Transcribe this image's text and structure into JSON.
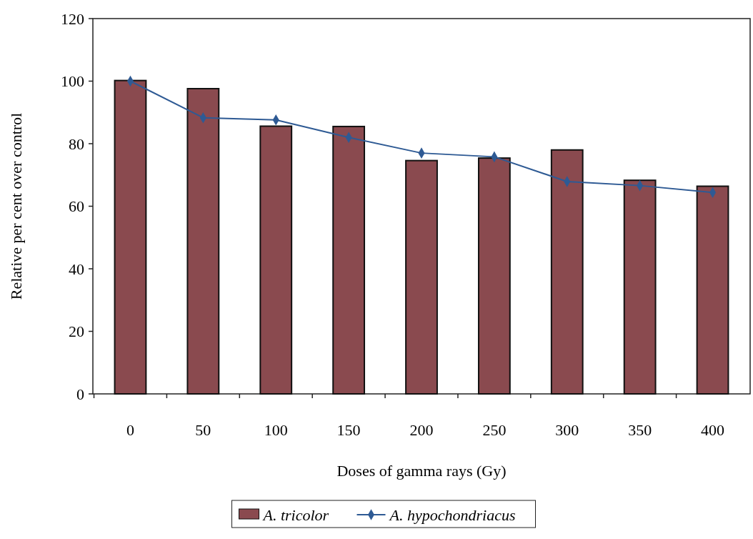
{
  "chart_data": {
    "type": "bar",
    "xlabel": "Doses of gamma rays (Gy)",
    "ylabel": "Relative per cent over control",
    "categories": [
      "0",
      "50",
      "100",
      "150",
      "200",
      "250",
      "300",
      "350",
      "400"
    ],
    "series": [
      {
        "name": "A. tricolor",
        "color": "#8a4a4f",
        "values": [
          100.2,
          97.6,
          85.6,
          85.5,
          74.6,
          75.4,
          78.0,
          68.3,
          66.4
        ]
      },
      {
        "name": "A. hypochondriacus",
        "type": "line",
        "color": "#2e5a94",
        "marker": "diamond",
        "values": [
          100,
          88.3,
          87.6,
          82.0,
          77.0,
          75.8,
          67.9,
          66.6,
          64.4
        ]
      }
    ],
    "ylim": [
      0,
      120
    ],
    "yticks": [
      0,
      20,
      40,
      60,
      80,
      100,
      120
    ],
    "grid": false,
    "legend": "bottom"
  }
}
